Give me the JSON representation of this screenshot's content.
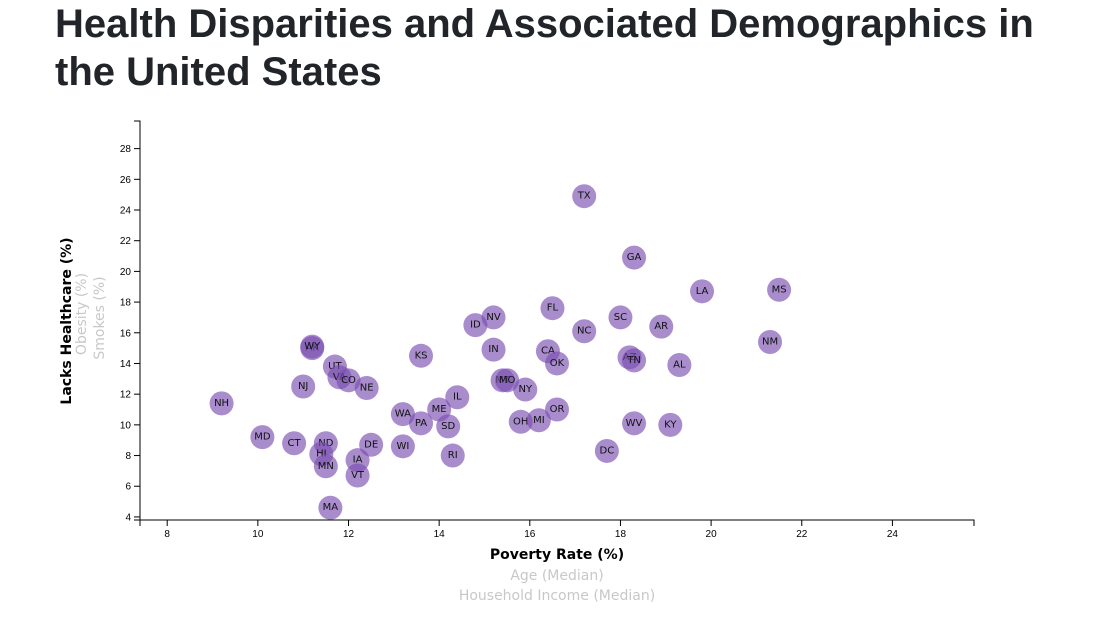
{
  "page": {
    "title": "Health Disparities and Associated Demographics in the United States"
  },
  "colors": {
    "marker": "#7a4fb0",
    "marker_opacity": 0.65,
    "active_label": "#000000",
    "inactive_label": "#c8c8c8"
  },
  "chart_data": {
    "type": "scatter",
    "title": "Health Disparities and Associated Demographics in the United States",
    "xlabel": "Poverty Rate (%)",
    "ylabel": "Lacks Healthcare (%)",
    "x_options": [
      "Poverty Rate (%)",
      "Age (Median)",
      "Household Income (Median)"
    ],
    "y_options": [
      "Lacks Healthcare (%)",
      "Obesity (%)",
      "Smokes (%)"
    ],
    "active_x": "Poverty Rate (%)",
    "active_y": "Lacks Healthcare (%)",
    "xlim": [
      7.4,
      25.8
    ],
    "ylim": [
      3.8,
      29.8
    ],
    "xticks": [
      8,
      10,
      12,
      14,
      16,
      18,
      20,
      22,
      24
    ],
    "yticks": [
      4,
      6,
      8,
      10,
      12,
      14,
      16,
      18,
      20,
      22,
      24,
      26,
      28
    ],
    "grid": false,
    "points": [
      {
        "abbr": "TX",
        "x": 17.2,
        "y": 24.9
      },
      {
        "abbr": "GA",
        "x": 18.3,
        "y": 20.9
      },
      {
        "abbr": "LA",
        "x": 19.8,
        "y": 18.7
      },
      {
        "abbr": "MS",
        "x": 21.5,
        "y": 18.8
      },
      {
        "abbr": "FL",
        "x": 16.5,
        "y": 17.6
      },
      {
        "abbr": "NV",
        "x": 15.2,
        "y": 17.0
      },
      {
        "abbr": "SC",
        "x": 18.0,
        "y": 17.0
      },
      {
        "abbr": "ID",
        "x": 14.8,
        "y": 16.5
      },
      {
        "abbr": "AR",
        "x": 18.9,
        "y": 16.4
      },
      {
        "abbr": "NC",
        "x": 17.2,
        "y": 16.1
      },
      {
        "abbr": "NM",
        "x": 21.3,
        "y": 15.4
      },
      {
        "abbr": "AK",
        "x": 11.2,
        "y": 15.0
      },
      {
        "abbr": "WY",
        "x": 11.2,
        "y": 15.1
      },
      {
        "abbr": "IN",
        "x": 15.2,
        "y": 14.9
      },
      {
        "abbr": "CA",
        "x": 16.4,
        "y": 14.8
      },
      {
        "abbr": "KS",
        "x": 13.6,
        "y": 14.5
      },
      {
        "abbr": "AZ",
        "x": 18.2,
        "y": 14.4
      },
      {
        "abbr": "TN",
        "x": 18.3,
        "y": 14.2
      },
      {
        "abbr": "OK",
        "x": 16.6,
        "y": 14.0
      },
      {
        "abbr": "AL",
        "x": 19.3,
        "y": 13.9
      },
      {
        "abbr": "UT",
        "x": 11.7,
        "y": 13.8
      },
      {
        "abbr": "VA",
        "x": 11.8,
        "y": 13.1
      },
      {
        "abbr": "CO",
        "x": 12.0,
        "y": 12.9
      },
      {
        "abbr": "MT",
        "x": 15.4,
        "y": 12.9
      },
      {
        "abbr": "MO",
        "x": 15.5,
        "y": 12.9
      },
      {
        "abbr": "NJ",
        "x": 11.0,
        "y": 12.5
      },
      {
        "abbr": "NE",
        "x": 12.4,
        "y": 12.4
      },
      {
        "abbr": "NY",
        "x": 15.9,
        "y": 12.3
      },
      {
        "abbr": "IL",
        "x": 14.4,
        "y": 11.8
      },
      {
        "abbr": "NH",
        "x": 9.2,
        "y": 11.4
      },
      {
        "abbr": "ME",
        "x": 14.0,
        "y": 11.0
      },
      {
        "abbr": "OR",
        "x": 16.6,
        "y": 11.0
      },
      {
        "abbr": "WA",
        "x": 13.2,
        "y": 10.7
      },
      {
        "abbr": "OH",
        "x": 15.8,
        "y": 10.2
      },
      {
        "abbr": "MI",
        "x": 16.2,
        "y": 10.3
      },
      {
        "abbr": "PA",
        "x": 13.6,
        "y": 10.1
      },
      {
        "abbr": "WV",
        "x": 18.3,
        "y": 10.1
      },
      {
        "abbr": "KY",
        "x": 19.1,
        "y": 10.0
      },
      {
        "abbr": "SD",
        "x": 14.2,
        "y": 9.9
      },
      {
        "abbr": "MD",
        "x": 10.1,
        "y": 9.2
      },
      {
        "abbr": "CT",
        "x": 10.8,
        "y": 8.8
      },
      {
        "abbr": "ND",
        "x": 11.5,
        "y": 8.8
      },
      {
        "abbr": "DE",
        "x": 12.5,
        "y": 8.7
      },
      {
        "abbr": "WI",
        "x": 13.2,
        "y": 8.6
      },
      {
        "abbr": "DC",
        "x": 17.7,
        "y": 8.3
      },
      {
        "abbr": "HI",
        "x": 11.4,
        "y": 8.1
      },
      {
        "abbr": "RI",
        "x": 14.3,
        "y": 8.0
      },
      {
        "abbr": "IA",
        "x": 12.2,
        "y": 7.7
      },
      {
        "abbr": "MN",
        "x": 11.5,
        "y": 7.3
      },
      {
        "abbr": "VT",
        "x": 12.2,
        "y": 6.7
      },
      {
        "abbr": "MA",
        "x": 11.6,
        "y": 4.6
      }
    ]
  }
}
